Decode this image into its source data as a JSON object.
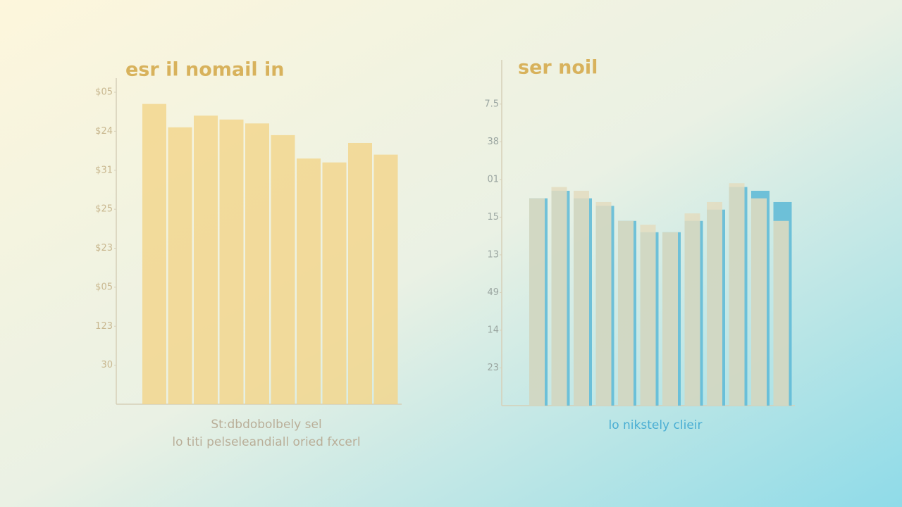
{
  "chart_data": [
    {
      "type": "bar",
      "title": "esr il nomail  in",
      "x_label": [
        "St:dbdobolbely sel",
        "lo titi pelseleandiall oried fxcerl"
      ],
      "categories": [
        null,
        null,
        null,
        null,
        null,
        null,
        null,
        null,
        null,
        null
      ],
      "series": [
        {
          "color": "#f2d68e",
          "values": [
            7.7,
            7.1,
            7.4,
            7.3,
            7.2,
            6.9,
            6.3,
            6.2,
            6.7,
            6.4
          ]
        }
      ],
      "ylim": [
        0,
        8
      ],
      "yticks": [
        {
          "value": 1,
          "label": "30"
        },
        {
          "value": 2,
          "label": "123"
        },
        {
          "value": 3,
          "label": "$05"
        },
        {
          "value": 4,
          "label": "$23"
        },
        {
          "value": 5,
          "label": "$25"
        },
        {
          "value": 6,
          "label": "$31"
        },
        {
          "value": 7,
          "label": "$24"
        },
        {
          "value": 8,
          "label": "$05"
        }
      ]
    },
    {
      "type": "bar",
      "title": "ser noil",
      "x_label": [
        "lo nikstely clieir"
      ],
      "categories": [
        null,
        null,
        null,
        null,
        null,
        null,
        null,
        null,
        null,
        null,
        null,
        null
      ],
      "series": [
        {
          "color": "#5cb8d6",
          "values": [
            5.5,
            5.7,
            5.5,
            5.3,
            4.9,
            4.6,
            4.6,
            4.9,
            5.2,
            5.8,
            5.7,
            5.4
          ]
        },
        {
          "color": "#e3dcc0",
          "values": [
            5.5,
            5.8,
            5.7,
            5.4,
            4.9,
            4.8,
            4.6,
            5.1,
            5.4,
            5.9,
            5.5,
            4.9
          ]
        }
      ],
      "ylim": [
        0,
        8.8
      ],
      "yticks": [
        {
          "value": 1,
          "label": "23"
        },
        {
          "value": 2,
          "label": "14"
        },
        {
          "value": 3,
          "label": "49"
        },
        {
          "value": 4,
          "label": "13"
        },
        {
          "value": 5,
          "label": "15"
        },
        {
          "value": 6,
          "label": "01"
        },
        {
          "value": 7,
          "label": "38"
        },
        {
          "value": 8,
          "label": "7.5"
        }
      ]
    }
  ]
}
